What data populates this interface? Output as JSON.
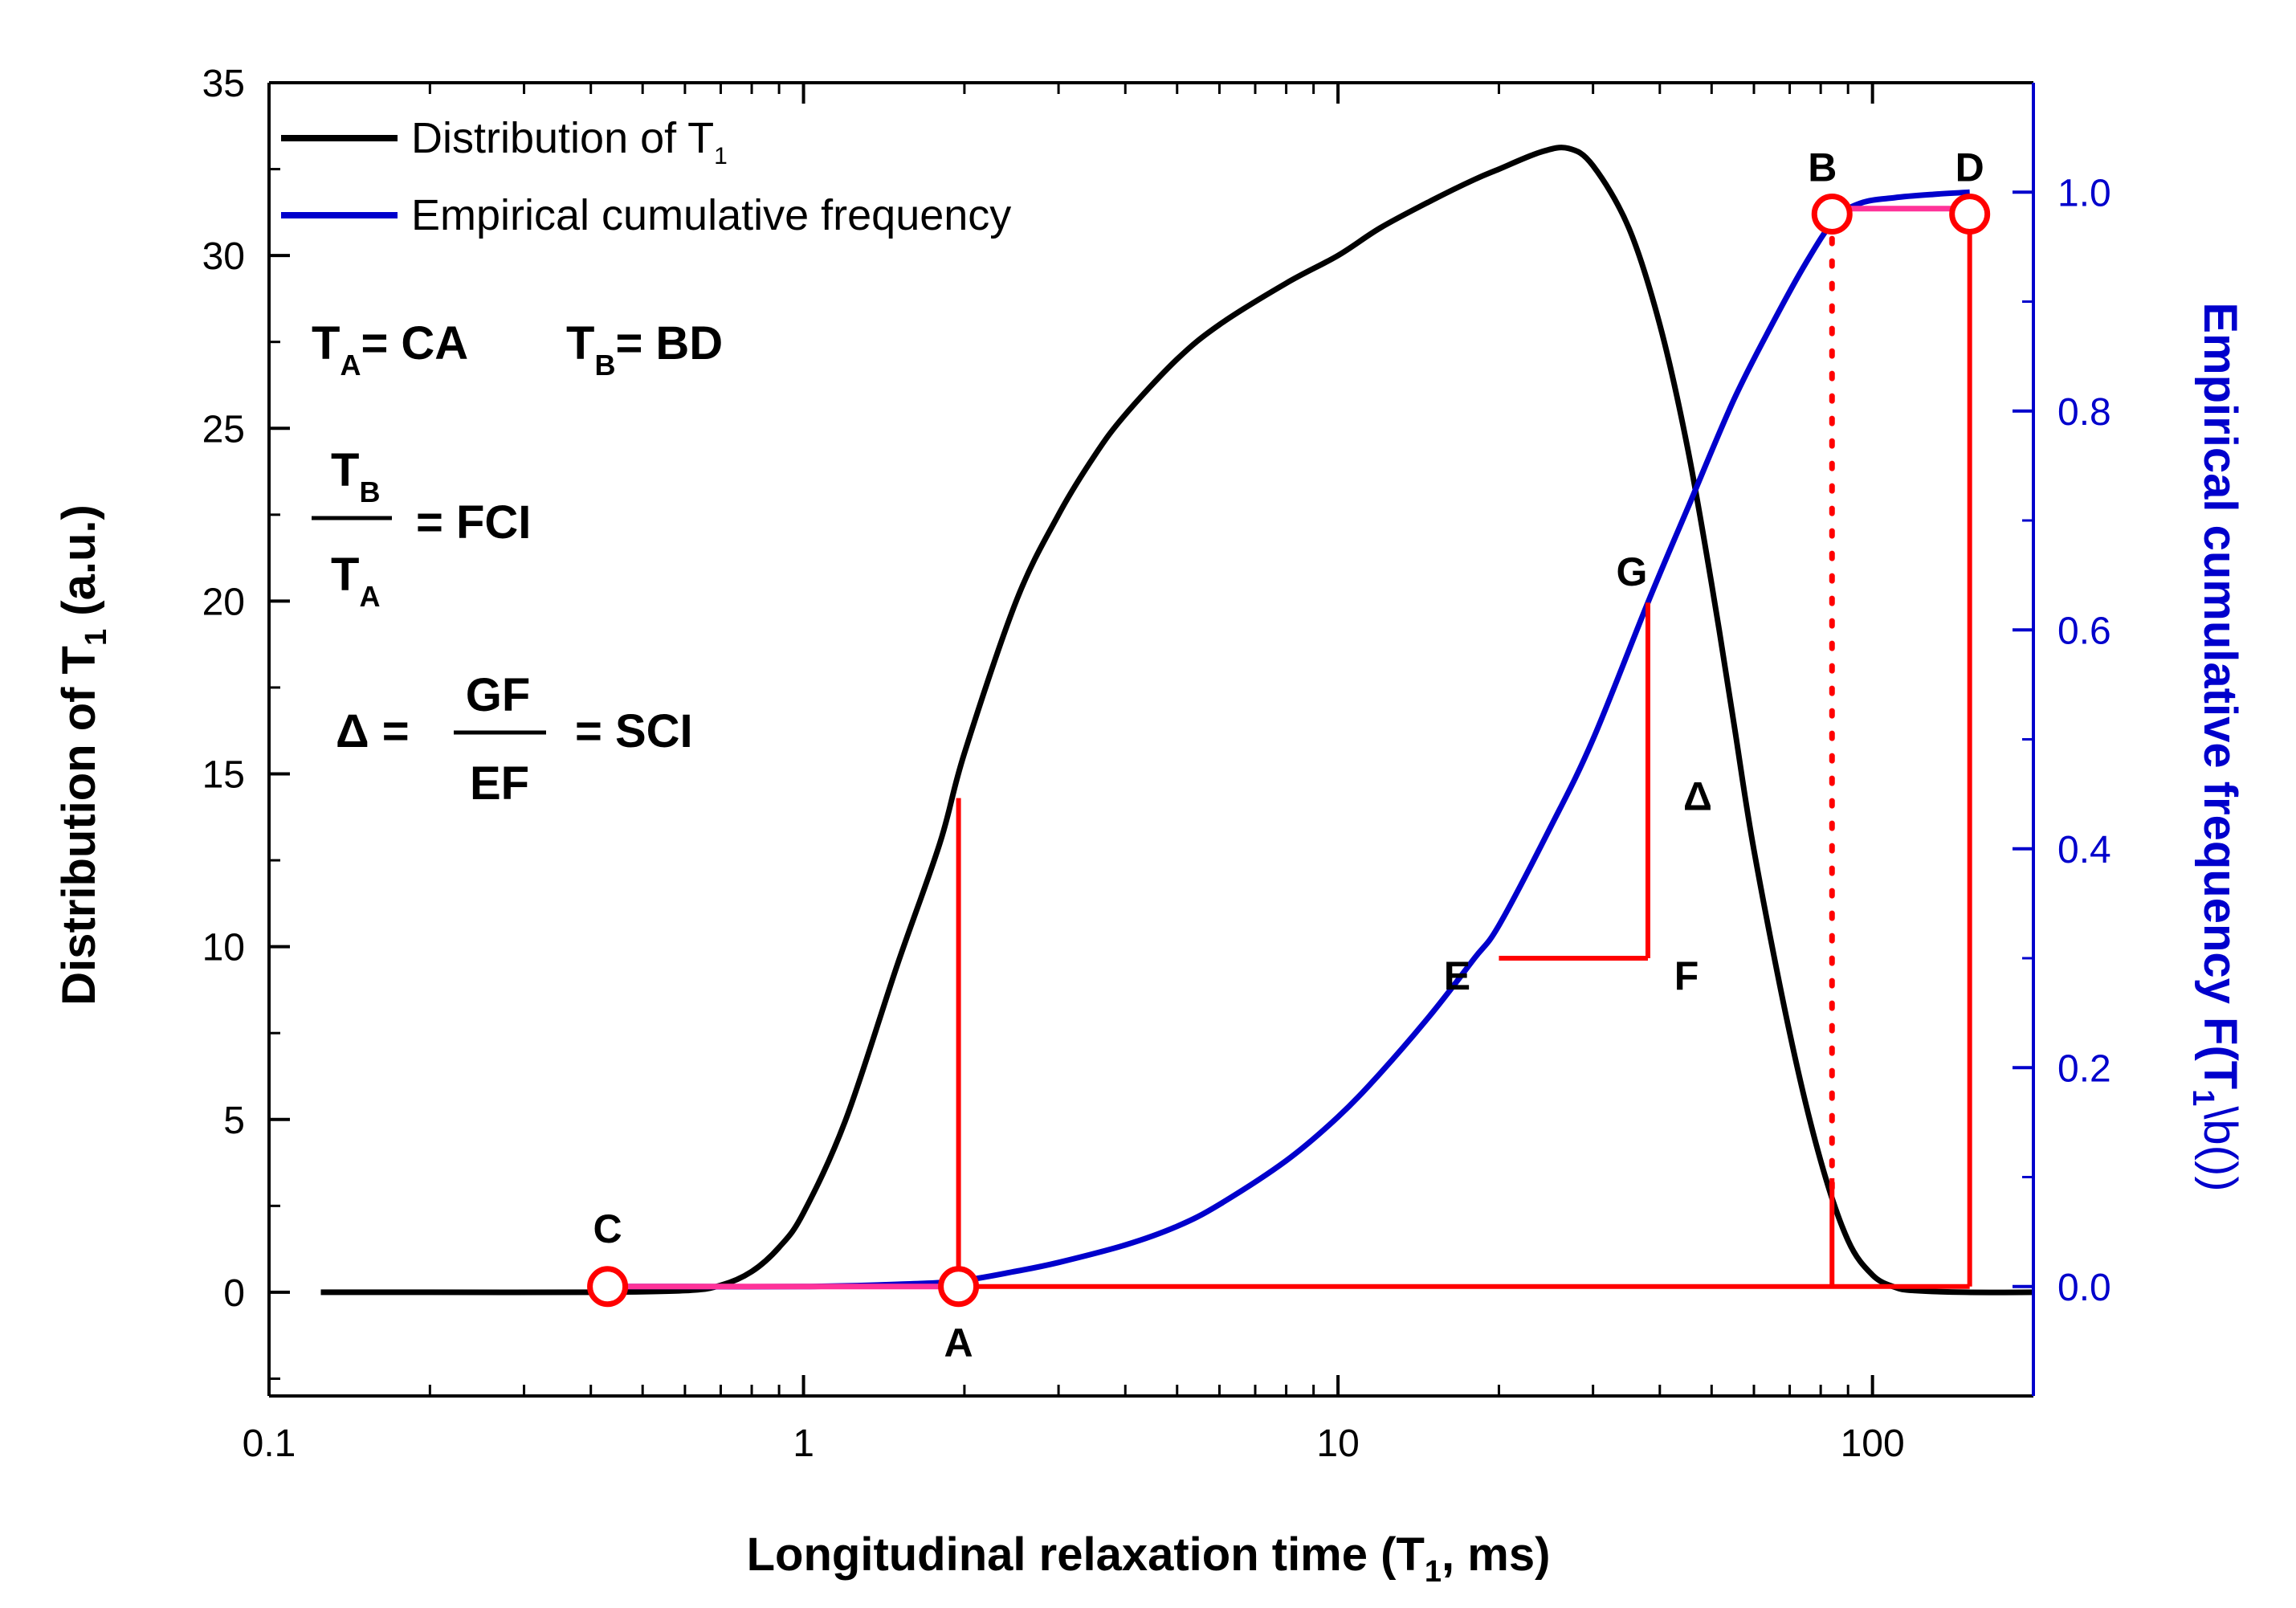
{
  "chart_data": {
    "type": "line",
    "xscale": "log",
    "xlim": [
      0.1,
      200
    ],
    "ylim_left": [
      -3,
      35
    ],
    "ylim_right": [
      -0.1,
      1.1
    ],
    "xlabel": "Longitudinal relaxation time (T",
    "xlabel_sub": "1",
    "xlabel_tail": ", ms)",
    "ylabel_left": "Distribution of T",
    "ylabel_left_sub": "1",
    "ylabel_left_tail": " (a.u.)",
    "ylabel_right": "Empirical cumulative frequency F(T",
    "ylabel_right_sub": "1",
    "ylabel_right_tail": "\\b())",
    "x_ticks": [
      {
        "value": 0.1,
        "label": "0.1"
      },
      {
        "value": 1,
        "label": "1"
      },
      {
        "value": 10,
        "label": "10"
      },
      {
        "value": 100,
        "label": "100"
      }
    ],
    "y_left_ticks": [
      {
        "value": 0,
        "label": "0"
      },
      {
        "value": 5,
        "label": "5"
      },
      {
        "value": 10,
        "label": "10"
      },
      {
        "value": 15,
        "label": "15"
      },
      {
        "value": 20,
        "label": "20"
      },
      {
        "value": 25,
        "label": "25"
      },
      {
        "value": 30,
        "label": "30"
      },
      {
        "value": 35,
        "label": "35"
      }
    ],
    "y_right_ticks": [
      {
        "value": 0.0,
        "label": "0.0"
      },
      {
        "value": 0.2,
        "label": "0.2"
      },
      {
        "value": 0.4,
        "label": "0.4"
      },
      {
        "value": 0.6,
        "label": "0.6"
      },
      {
        "value": 0.8,
        "label": "0.8"
      },
      {
        "value": 1.0,
        "label": "1.0"
      }
    ],
    "legend": {
      "placement": "top-left",
      "entries": [
        {
          "label": "Distribution of T",
          "sub": "1",
          "color": "#000000"
        },
        {
          "label": "Empirical cumulative frequency",
          "sub": "",
          "color": "#0000cc"
        }
      ]
    },
    "series": [
      {
        "name": "Distribution of T1",
        "axis": "left",
        "color": "#000000",
        "x": [
          0.125,
          0.2,
          0.4,
          0.6,
          0.7,
          0.8,
          0.9,
          1.0,
          1.2,
          1.5,
          1.8,
          2.0,
          2.5,
          3.0,
          3.5,
          4.0,
          5.0,
          6.0,
          8.0,
          10.0,
          12.0,
          15.0,
          18.0,
          20.0,
          24.0,
          27.0,
          30.0,
          35.0,
          40.0,
          45.0,
          50.0,
          55.0,
          60.0,
          70.0,
          80.0,
          90.0,
          100.0,
          110.0,
          120.0,
          150.0,
          200.0
        ],
        "y": [
          0.0,
          0.0,
          0.0,
          0.05,
          0.2,
          0.6,
          1.3,
          2.3,
          5.0,
          9.5,
          13.0,
          15.6,
          20.0,
          22.5,
          24.2,
          25.4,
          27.0,
          28.0,
          29.2,
          30.0,
          30.8,
          31.6,
          32.2,
          32.5,
          33.0,
          33.1,
          32.6,
          30.8,
          28.0,
          24.5,
          20.5,
          16.5,
          12.8,
          7.5,
          3.8,
          1.5,
          0.5,
          0.15,
          0.05,
          0.0,
          0.0
        ]
      },
      {
        "name": "Empirical cumulative frequency",
        "axis": "right",
        "color": "#0000cc",
        "x": [
          0.43,
          0.6,
          1.0,
          1.5,
          1.95,
          2.5,
          3.0,
          4.0,
          5.0,
          6.0,
          8.0,
          10.0,
          12.0,
          15.0,
          18.0,
          20.0,
          25.0,
          30.0,
          38.0,
          45.0,
          55.0,
          65.0,
          75.0,
          85.0,
          95.0,
          110.0,
          130.0,
          152.0
        ],
        "y": [
          0.0,
          0.0,
          0.0,
          0.002,
          0.005,
          0.014,
          0.022,
          0.038,
          0.055,
          0.075,
          0.115,
          0.155,
          0.195,
          0.25,
          0.3,
          0.33,
          0.42,
          0.5,
          0.625,
          0.71,
          0.81,
          0.88,
          0.935,
          0.975,
          0.99,
          0.995,
          0.998,
          1.0
        ]
      }
    ],
    "annotations": {
      "points": [
        {
          "id": "C",
          "x": 0.43,
          "y_right": 0.0,
          "label": "C",
          "marker": true
        },
        {
          "id": "A",
          "x": 1.95,
          "y_right": 0.0,
          "label": "A",
          "marker": true
        },
        {
          "id": "B",
          "x": 84.0,
          "y_right": 0.98,
          "label": "B",
          "marker": true
        },
        {
          "id": "D",
          "x": 152.0,
          "y_right": 0.98,
          "label": "D",
          "marker": true
        },
        {
          "id": "E",
          "x": 20.0,
          "y_right": 0.3,
          "label": "E",
          "marker": false
        },
        {
          "id": "F",
          "x": 38.0,
          "y_right": 0.3,
          "label": "F",
          "marker": false
        },
        {
          "id": "G",
          "x": 38.0,
          "y_right": 0.625,
          "label": "G",
          "marker": false
        }
      ],
      "delta_label": "Δ",
      "segments": [
        {
          "x1": 0.43,
          "y1": 0.0,
          "x2": 152.0,
          "y2": 0.0
        },
        {
          "x1": 1.95,
          "y1": 0.0,
          "x2": 1.95,
          "y1_left": 14.3
        },
        {
          "x1": 84.0,
          "y1": 0.0,
          "x2": 84.0,
          "y1_left": 3.3
        },
        {
          "x1": 152.0,
          "y1": 0.0,
          "x2": 152.0,
          "y2": 0.98
        },
        {
          "x1": 20.0,
          "y1": 0.3,
          "x2": 38.0,
          "y2": 0.3
        },
        {
          "x1": 38.0,
          "y1": 0.3,
          "x2": 38.0,
          "y2": 0.625
        }
      ],
      "dotted": {
        "x": 84.0,
        "y1": 0.09,
        "y2": 0.98
      },
      "plateau": {
        "x1": 84.0,
        "x2": 152.0,
        "y": 0.985
      }
    },
    "equations": {
      "ta": "T",
      "ta_sub": "A",
      "ta_eq": "= CA",
      "tb": "T",
      "tb_sub": "B",
      "tb_eq": "= BD",
      "frac1_num": "T",
      "frac1_num_sub": "B",
      "frac1_den": "T",
      "frac1_den_sub": "A",
      "frac1_result": "= FCI",
      "delta_lhs": "Δ =",
      "frac2_num": "GF",
      "frac2_den": "EF",
      "frac2_result": "= SCI"
    }
  }
}
